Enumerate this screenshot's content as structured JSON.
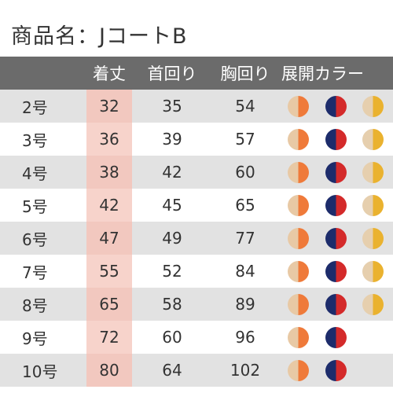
{
  "title": "商品名：JコートB",
  "headers": {
    "length": "着丈",
    "neck": "首回り",
    "chest": "胸回り",
    "colors": "展開カラー"
  },
  "colors": {
    "beige_orange": [
      "#e8c9a5",
      "#ef7a3a"
    ],
    "navy_red": [
      "#1d2c6b",
      "#d42a2a"
    ],
    "beige_yellow": [
      "#e6cfae",
      "#eab22f"
    ]
  },
  "rows": [
    {
      "size": "2号",
      "length": "32",
      "neck": "35",
      "chest": "54",
      "has_yellow": true
    },
    {
      "size": "3号",
      "length": "36",
      "neck": "39",
      "chest": "57",
      "has_yellow": true
    },
    {
      "size": "4号",
      "length": "38",
      "neck": "42",
      "chest": "60",
      "has_yellow": true
    },
    {
      "size": "5号",
      "length": "42",
      "neck": "45",
      "chest": "65",
      "has_yellow": true
    },
    {
      "size": "6号",
      "length": "47",
      "neck": "49",
      "chest": "77",
      "has_yellow": true
    },
    {
      "size": "7号",
      "length": "55",
      "neck": "52",
      "chest": "84",
      "has_yellow": true
    },
    {
      "size": "8号",
      "length": "65",
      "neck": "58",
      "chest": "89",
      "has_yellow": true
    },
    {
      "size": "9号",
      "length": "72",
      "neck": "60",
      "chest": "96",
      "has_yellow": false
    },
    {
      "size": "10号",
      "length": "80",
      "neck": "64",
      "chest": "102",
      "has_yellow": false
    }
  ]
}
